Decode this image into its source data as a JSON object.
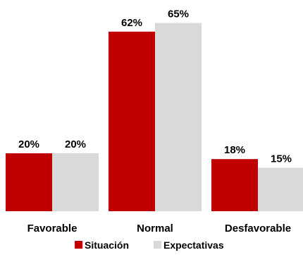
{
  "chart_data": {
    "type": "bar",
    "categories": [
      "Favorable",
      "Normal",
      "Desfavorable"
    ],
    "series": [
      {
        "name": "Situación",
        "values": [
          20,
          62,
          18
        ],
        "color": "#C00000"
      },
      {
        "name": "Expectativas",
        "values": [
          20,
          65,
          15
        ],
        "color": "#D9D9D9"
      }
    ],
    "value_suffix": "%",
    "ylim": [
      0,
      70
    ],
    "grid": false,
    "legend_position": "bottom-center"
  }
}
